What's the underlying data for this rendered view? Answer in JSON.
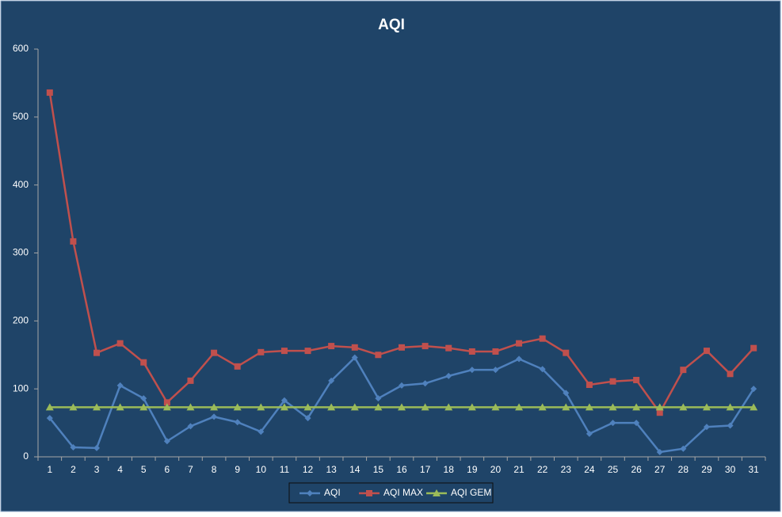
{
  "chart_data": {
    "type": "line",
    "title": "AQI",
    "categories": [
      "1",
      "2",
      "3",
      "4",
      "5",
      "6",
      "7",
      "8",
      "9",
      "10",
      "11",
      "12",
      "13",
      "14",
      "15",
      "16",
      "17",
      "18",
      "19",
      "20",
      "21",
      "22",
      "23",
      "24",
      "25",
      "26",
      "27",
      "28",
      "29",
      "30",
      "31"
    ],
    "series": [
      {
        "name": "AQI",
        "color": "#4f81bd",
        "marker": "diamond",
        "values": [
          57,
          14,
          13,
          105,
          86,
          23,
          45,
          59,
          51,
          37,
          83,
          57,
          112,
          146,
          86,
          105,
          108,
          119,
          128,
          128,
          144,
          129,
          94,
          34,
          50,
          50,
          7,
          12,
          44,
          46,
          100
        ]
      },
      {
        "name": "AQI MAX",
        "color": "#c0504d",
        "marker": "square",
        "values": [
          536,
          317,
          153,
          167,
          139,
          80,
          112,
          153,
          133,
          154,
          156,
          156,
          163,
          161,
          150,
          161,
          163,
          160,
          155,
          155,
          167,
          174,
          153,
          106,
          111,
          113,
          65,
          128,
          156,
          122,
          160
        ]
      },
      {
        "name": "AQI GEM",
        "color": "#9bbb59",
        "marker": "triangle",
        "values": [
          73,
          73,
          73,
          73,
          73,
          73,
          73,
          73,
          73,
          73,
          73,
          73,
          73,
          73,
          73,
          73,
          73,
          73,
          73,
          73,
          73,
          73,
          73,
          73,
          73,
          73,
          73,
          73,
          73,
          73,
          73
        ]
      }
    ],
    "ylim": [
      0,
      600
    ],
    "yticks": [
      0,
      100,
      200,
      300,
      400,
      500,
      600
    ],
    "grid": false,
    "legend": "bottom"
  }
}
